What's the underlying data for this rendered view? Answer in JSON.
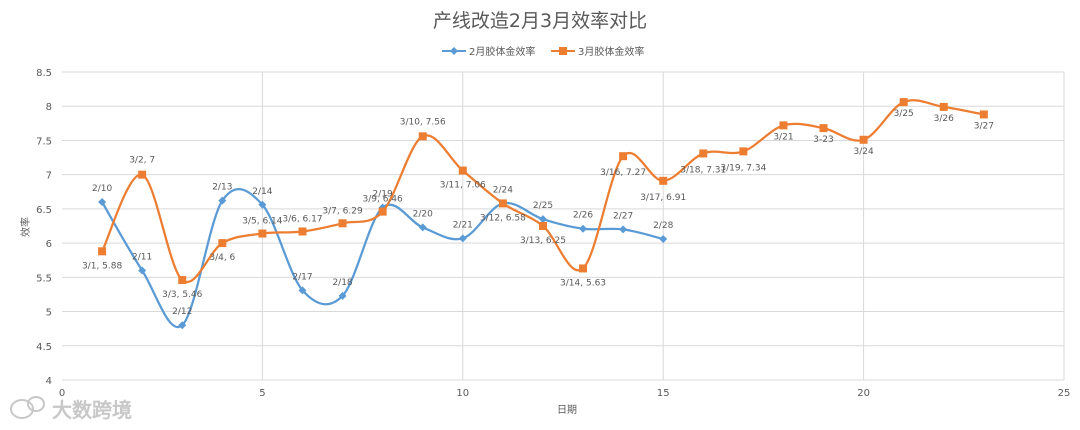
{
  "chart_data": {
    "type": "scatter",
    "title": "产线改造2月3月效率对比",
    "xlabel": "日期",
    "ylabel": "效率",
    "xlim": [
      0,
      25
    ],
    "ylim": [
      4,
      8.5
    ],
    "xticks": [
      0,
      5,
      10,
      15,
      20,
      25
    ],
    "yticks": [
      4,
      4.5,
      5,
      5.5,
      6,
      6.5,
      7,
      7.5,
      8,
      8.5
    ],
    "grid": true,
    "smooth": true,
    "legend_position": "top",
    "series": [
      {
        "name": "2月胶体金效率",
        "color": "#5b9bd5",
        "marker": "diamond",
        "points": [
          {
            "x": 1,
            "y": 6.6,
            "label": "2/10"
          },
          {
            "x": 2,
            "y": 5.6,
            "label": "2/11"
          },
          {
            "x": 3,
            "y": 4.8,
            "label": "2/12"
          },
          {
            "x": 4,
            "y": 6.62,
            "label": "2/13"
          },
          {
            "x": 5,
            "y": 6.56,
            "label": "2/14"
          },
          {
            "x": 6,
            "y": 5.31,
            "label": "2/17"
          },
          {
            "x": 7,
            "y": 5.23,
            "label": "2/18"
          },
          {
            "x": 8,
            "y": 6.52,
            "label": "2/19"
          },
          {
            "x": 9,
            "y": 6.23,
            "label": "2/20"
          },
          {
            "x": 10,
            "y": 6.07,
            "label": "2/21"
          },
          {
            "x": 11,
            "y": 6.58,
            "label": "2/24"
          },
          {
            "x": 12,
            "y": 6.35,
            "label": "2/25"
          },
          {
            "x": 13,
            "y": 6.21,
            "label": "2/26"
          },
          {
            "x": 14,
            "y": 6.2,
            "label": "2/27"
          },
          {
            "x": 15,
            "y": 6.06,
            "label": "2/28"
          }
        ]
      },
      {
        "name": "3月胶体金效率",
        "color": "#ed7d31",
        "marker": "square",
        "points": [
          {
            "x": 1,
            "y": 5.88,
            "label": "3/1, 5.88"
          },
          {
            "x": 2,
            "y": 7.0,
            "label": "3/2, 7"
          },
          {
            "x": 3,
            "y": 5.46,
            "label": "3/3, 5.46"
          },
          {
            "x": 4,
            "y": 6.0,
            "label": "3/4, 6"
          },
          {
            "x": 5,
            "y": 6.14,
            "label": "3/5, 6.14"
          },
          {
            "x": 6,
            "y": 6.17,
            "label": "3/6, 6.17"
          },
          {
            "x": 7,
            "y": 6.29,
            "label": "3/7, 6.29"
          },
          {
            "x": 8,
            "y": 6.46,
            "label": "3/9, 6.46"
          },
          {
            "x": 9,
            "y": 7.56,
            "label": "3/10, 7.56"
          },
          {
            "x": 10,
            "y": 7.06,
            "label": "3/11, 7.06"
          },
          {
            "x": 11,
            "y": 6.58,
            "label": "3/12, 6.58"
          },
          {
            "x": 12,
            "y": 6.25,
            "label": "3/13, 6.25"
          },
          {
            "x": 13,
            "y": 5.63,
            "label": "3/14, 5.63"
          },
          {
            "x": 14,
            "y": 7.27,
            "label": "3/16, 7.27"
          },
          {
            "x": 15,
            "y": 6.91,
            "label": "3/17, 6.91"
          },
          {
            "x": 16,
            "y": 7.31,
            "label": "3/18, 7.31"
          },
          {
            "x": 17,
            "y": 7.34,
            "label": "3/19, 7.34"
          },
          {
            "x": 18,
            "y": 7.72,
            "label": "3/21"
          },
          {
            "x": 19,
            "y": 7.68,
            "label": "3-23"
          },
          {
            "x": 20,
            "y": 7.51,
            "label": "3/24"
          },
          {
            "x": 21,
            "y": 8.06,
            "label": "3/25"
          },
          {
            "x": 22,
            "y": 7.99,
            "label": "3/26"
          },
          {
            "x": 23,
            "y": 7.88,
            "label": "3/27"
          }
        ]
      }
    ]
  },
  "watermark": {
    "text": "大数跨境",
    "icon": "chat-bubble-logo-icon"
  }
}
